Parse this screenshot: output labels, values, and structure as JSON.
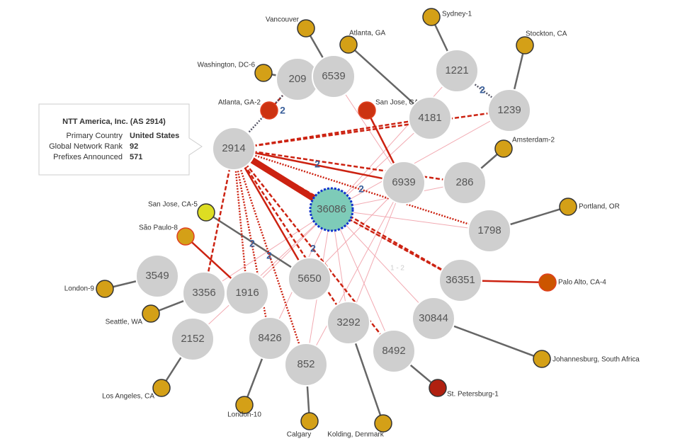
{
  "as_nodes": [
    "2914",
    "209",
    "6539",
    "1221",
    "4181",
    "1239",
    "6939",
    "286",
    "36086",
    "1798",
    "36351",
    "30844",
    "5650",
    "3292",
    "8492",
    "852",
    "8426",
    "1916",
    "3356",
    "3549",
    "2152"
  ],
  "locations": [
    "Vancouver",
    "Atlanta, GA",
    "Sydney-1",
    "Stockton, CA",
    "Washington, DC-6",
    "Atlanta, GA-2",
    "San Jose, CA",
    "Amsterdam-2",
    "Portland, OR",
    "San Jose, CA-5",
    "São Paulo-8",
    "Palo Alto, CA-4",
    "London-9",
    "Seattle, WA",
    "Johannesburg, South Africa",
    "St. Petersburg-1",
    "Los Angeles, CA",
    "London-10",
    "Calgary",
    "Kolding, Denmark"
  ],
  "edge_labels": [
    "2",
    "2",
    "2",
    "2",
    "2",
    "2",
    "2",
    "1 - 2"
  ],
  "tooltip": {
    "title": "NTT America, Inc. (AS 2914)",
    "rows": [
      [
        "Primary Country",
        "United States"
      ],
      [
        "Global Network Rank",
        92
      ],
      [
        "Prefixes Announced",
        571
      ]
    ]
  }
}
